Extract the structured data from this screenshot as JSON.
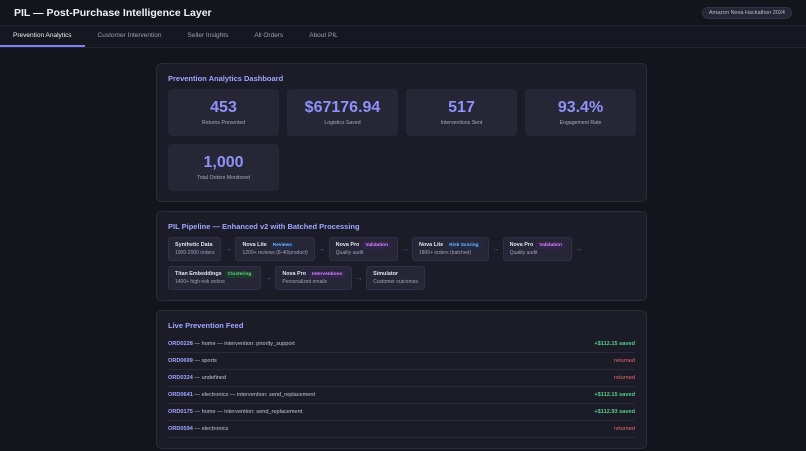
{
  "header": {
    "title": "PIL — Post-Purchase Intelligence Layer",
    "badge": "Amazon Nova Hackathon 2024"
  },
  "tabs": [
    {
      "label": "Prevention Analytics",
      "active": true
    },
    {
      "label": "Customer Intervention"
    },
    {
      "label": "Seller Insights"
    },
    {
      "label": "All Orders"
    },
    {
      "label": "About PIL"
    }
  ],
  "dashboard": {
    "title": "Prevention Analytics Dashboard",
    "stats": [
      {
        "value": "453",
        "label": "Returns Prevented"
      },
      {
        "value": "$67176.94",
        "label": "Logistics Saved"
      },
      {
        "value": "517",
        "label": "Interventions Sent"
      },
      {
        "value": "93.4%",
        "label": "Engagement Rate"
      },
      {
        "value": "1,000",
        "label": "Total Orders Monitored"
      }
    ]
  },
  "pipeline": {
    "title": "PIL Pipeline — Enhanced v2 with Batched Processing",
    "nodes": [
      {
        "title": "Synthetic Data",
        "tag": "",
        "sub": "1000-2000 orders"
      },
      {
        "title": "Nova Lite",
        "tag": "Reviews",
        "tag_color": "blue",
        "sub": "1200+ reviews (8-40/product)"
      },
      {
        "title": "Nova Pro",
        "tag": "Validation",
        "tag_color": "purple",
        "sub": "Quality audit"
      },
      {
        "title": "Nova Lite",
        "tag": "Risk Scoring",
        "tag_color": "blue",
        "sub": "1800+ orders (batched)"
      },
      {
        "title": "Nova Pro",
        "tag": "Validation",
        "tag_color": "purple",
        "sub": "Quality audit"
      },
      {
        "title": "Titan Embeddings",
        "tag": "Clustering",
        "tag_color": "green",
        "sub": "1400+ high-risk orders"
      },
      {
        "title": "Nova Pro",
        "tag": "Interventions",
        "tag_color": "purple",
        "sub": "Personalized emails"
      },
      {
        "title": "Simulator",
        "tag": "",
        "sub": "Customer outcomes"
      }
    ]
  },
  "feed": {
    "title": "Live Prevention Feed",
    "rows": [
      {
        "order": "ORD0228",
        "detail": " — home — intervention: priority_support",
        "result": "+$112.15 saved",
        "status": "saved"
      },
      {
        "order": "ORD0699",
        "detail": " — sports",
        "result": "returned",
        "status": "returned"
      },
      {
        "order": "ORD0324",
        "detail": " — undefined",
        "result": "returned",
        "status": "returned"
      },
      {
        "order": "ORD0641",
        "detail": " — electronics — intervention: send_replacement",
        "result": "+$112.15 saved",
        "status": "saved"
      },
      {
        "order": "ORD0175",
        "detail": " — home — intervention: send_replacement",
        "result": "+$112.93 saved",
        "status": "saved"
      },
      {
        "order": "ORD0594",
        "detail": " — electronics",
        "result": "returned",
        "status": "returned"
      }
    ]
  }
}
